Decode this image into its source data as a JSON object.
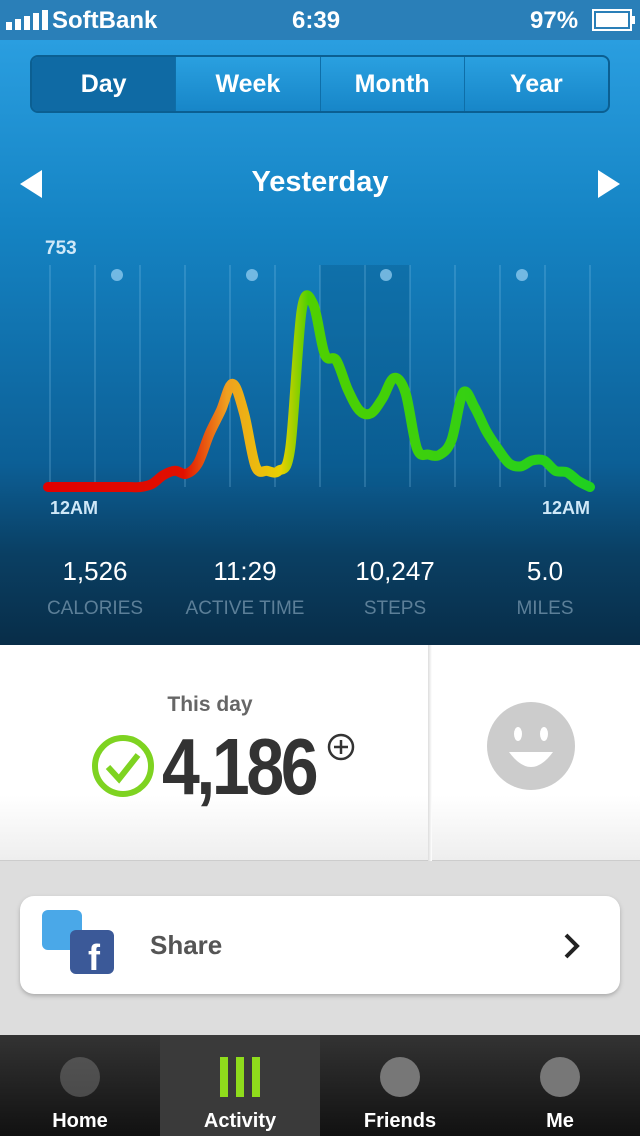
{
  "status_bar": {
    "carrier": "SoftBank",
    "time": "6:39",
    "battery": "97%"
  },
  "period_tabs": {
    "items": [
      "Day",
      "Week",
      "Month",
      "Year"
    ],
    "selected": 0
  },
  "header": {
    "title": "Yesterday"
  },
  "graph": {
    "type": "line",
    "ymax": 753,
    "start_label": "12AM",
    "end_label": "12AM",
    "values": [
      0,
      0,
      0,
      0,
      0,
      0,
      0,
      0,
      0,
      10,
      40,
      55,
      45,
      80,
      180,
      260,
      350,
      250,
      70,
      55,
      55,
      130,
      600,
      620,
      450,
      430,
      330,
      260,
      250,
      300,
      370,
      320,
      130,
      110,
      110,
      160,
      320,
      270,
      190,
      130,
      80,
      70,
      90,
      90,
      55,
      50,
      20,
      0
    ]
  },
  "stats": [
    {
      "value": "1,526",
      "label": "CALORIES"
    },
    {
      "value": "11:29",
      "label": "ACTIVE TIME"
    },
    {
      "value": "10,247",
      "label": "STEPS"
    },
    {
      "value": "5.0",
      "label": "MILES"
    }
  ],
  "summary": {
    "label": "This day",
    "value": "4,186"
  },
  "share": {
    "label": "Share"
  },
  "tab_bar": {
    "items": [
      "Home",
      "Activity",
      "Friends",
      "Me"
    ],
    "selected": 1
  }
}
